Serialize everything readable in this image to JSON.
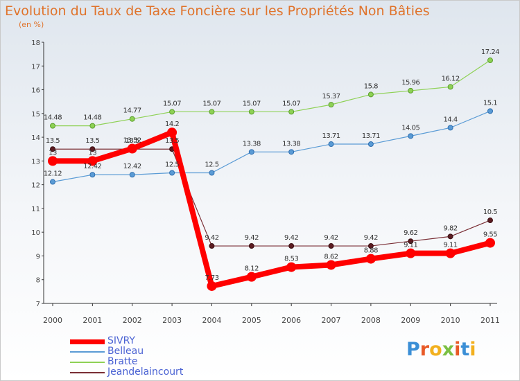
{
  "title": "Evolution du Taux de Taxe Foncière sur les Propriétés Non Bâties",
  "subtitle": "(en %)",
  "brand": "Proxiti",
  "chart_data": {
    "type": "line",
    "x": [
      "2000",
      "2001",
      "2002",
      "2003",
      "2004",
      "2005",
      "2006",
      "2007",
      "2008",
      "2009",
      "2010",
      "2011"
    ],
    "ylim": [
      7,
      18
    ],
    "yticks": [
      7,
      8,
      9,
      10,
      11,
      12,
      13,
      14,
      15,
      16,
      17,
      18
    ],
    "grid": false,
    "legend_position": "bottom-left",
    "series": [
      {
        "name": "SIVRY",
        "color": "#ff0000",
        "values": [
          13,
          13,
          13.52,
          14.2,
          7.73,
          8.12,
          8.53,
          8.62,
          8.88,
          9.11,
          9.11,
          9.55
        ],
        "labels": [
          "13",
          "13",
          "13.52",
          "14.2",
          "7.73",
          "8.12",
          "8.53",
          "8.62",
          "8.88",
          "9.11",
          "9.11",
          "9.55"
        ]
      },
      {
        "name": "Belleau",
        "color": "#5a9bd5",
        "values": [
          12.12,
          12.42,
          12.42,
          12.5,
          12.5,
          13.38,
          13.38,
          13.71,
          13.71,
          14.05,
          14.4,
          15.1
        ],
        "labels": [
          "12.12",
          "12.42",
          "12.42",
          "12.5",
          "12.5",
          "13.38",
          "13.38",
          "13.71",
          "13.71",
          "14.05",
          "14.4",
          "15.1"
        ]
      },
      {
        "name": "Bratte",
        "color": "#8ed155",
        "values": [
          14.48,
          14.48,
          14.77,
          15.07,
          15.07,
          15.07,
          15.07,
          15.37,
          15.8,
          15.96,
          16.12,
          17.24
        ],
        "labels": [
          "14.48",
          "14.48",
          "14.77",
          "15.07",
          "15.07",
          "15.07",
          "15.07",
          "15.37",
          "15.8",
          "15.96",
          "16.12",
          "17.24"
        ]
      },
      {
        "name": "Jeandelaincourt",
        "color": "#7a2e35",
        "values": [
          13.5,
          13.5,
          13.5,
          13.5,
          9.42,
          9.42,
          9.42,
          9.42,
          9.42,
          9.62,
          9.82,
          10.5
        ],
        "labels": [
          "13.5",
          "13.5",
          "13.5",
          "13.5",
          "9.42",
          "9.42",
          "9.42",
          "9.42",
          "9.42",
          "9.62",
          "9.82",
          "10.5"
        ]
      }
    ]
  }
}
